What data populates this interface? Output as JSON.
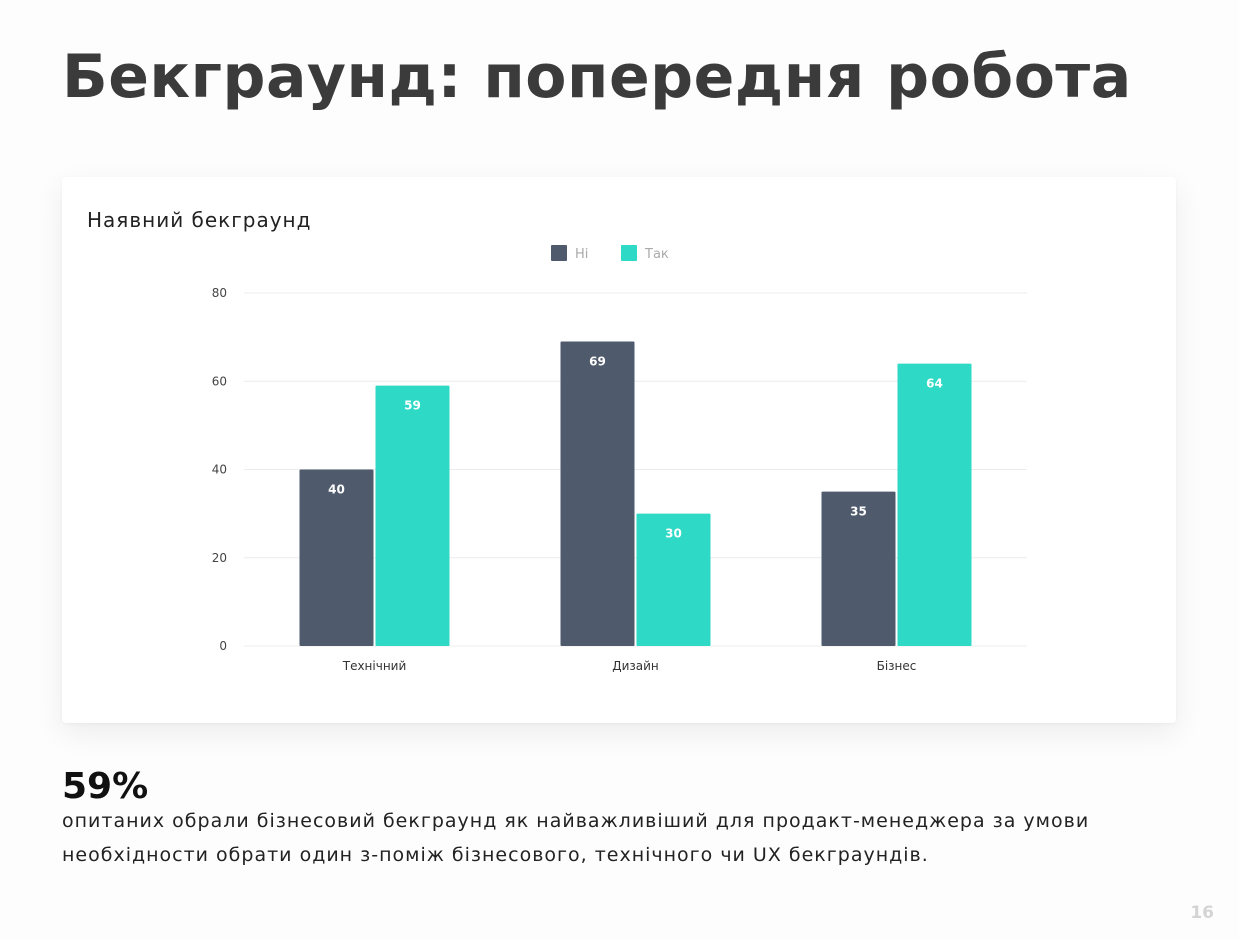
{
  "slide": {
    "title": "Бекграунд: попередня робота",
    "page_number": "16"
  },
  "chart_data": {
    "type": "bar",
    "title": "Наявний бекграунд",
    "categories": [
      "Технічний",
      "Дизайн",
      "Бізнес"
    ],
    "series": [
      {
        "name": "Ні",
        "values": [
          40,
          69,
          35
        ],
        "color": "#4f5b6c"
      },
      {
        "name": "Так",
        "values": [
          59,
          30,
          64
        ],
        "color": "#2ed9c5"
      }
    ],
    "ylim": [
      0,
      80
    ],
    "yticks": [
      0,
      20,
      40,
      60,
      80
    ],
    "xlabel": "",
    "ylabel": "",
    "grid": true,
    "legend": "top-center",
    "data_labels": true
  },
  "stat": {
    "value": "59%",
    "text": "опитаних обрали бізнесовий бекграунд як найважливіший для продакт-менеджера за умови необхідности обрати один з-поміж бізнесового, технічного чи UX бекграундів."
  }
}
